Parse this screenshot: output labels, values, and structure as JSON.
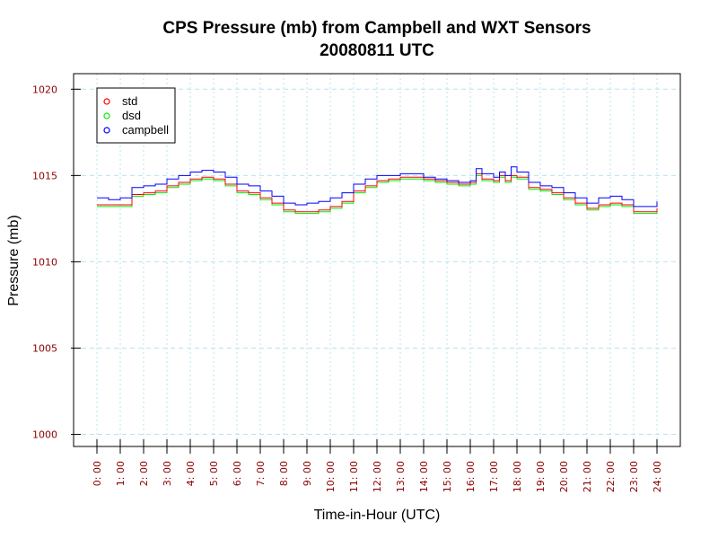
{
  "chart_data": {
    "type": "line",
    "title": "CPS Pressure (mb) from Campbell and WXT Sensors",
    "subtitle": "20080811  UTC",
    "xlabel": "Time-in-Hour (UTC)",
    "ylabel": "Pressure (mb)",
    "xlim": [
      -1,
      25
    ],
    "ylim": [
      999.3,
      1020.9
    ],
    "x_ticks": [
      0,
      1,
      2,
      3,
      4,
      5,
      6,
      7,
      8,
      9,
      10,
      11,
      12,
      13,
      14,
      15,
      16,
      17,
      18,
      19,
      20,
      21,
      22,
      23,
      24
    ],
    "x_tick_labels": [
      "0: 00",
      "1: 00",
      "2: 00",
      "3: 00",
      "4: 00",
      "5: 00",
      "6: 00",
      "7: 00",
      "8: 00",
      "9: 00",
      "10: 00",
      "11: 00",
      "12: 00",
      "13: 00",
      "14: 00",
      "15: 00",
      "16: 00",
      "17: 00",
      "18: 00",
      "19: 00",
      "20: 00",
      "21: 00",
      "22: 00",
      "23: 00",
      "24: 00"
    ],
    "y_ticks": [
      1000,
      1005,
      1010,
      1015,
      1020
    ],
    "y_tick_labels": [
      "1000",
      "1005",
      "1010",
      "1015",
      "1020"
    ],
    "grid": true,
    "legend_position": "top-left",
    "x": [
      0,
      0.5,
      1,
      1.5,
      2,
      2.5,
      3,
      3.5,
      4,
      4.5,
      5,
      5.5,
      6,
      6.5,
      7,
      7.5,
      8,
      8.5,
      9,
      9.5,
      10,
      10.5,
      11,
      11.5,
      12,
      12.5,
      13,
      13.5,
      14,
      14.5,
      15,
      15.5,
      16,
      16.25,
      16.5,
      17,
      17.25,
      17.5,
      17.75,
      18,
      18.5,
      19,
      19.5,
      20,
      20.5,
      21,
      21.5,
      22,
      22.5,
      23,
      23.5,
      24
    ],
    "series": [
      {
        "name": "std",
        "color": "#ff0000",
        "values": [
          1013.3,
          1013.3,
          1013.3,
          1013.9,
          1014.0,
          1014.1,
          1014.4,
          1014.6,
          1014.8,
          1014.9,
          1014.8,
          1014.5,
          1014.1,
          1014.0,
          1013.7,
          1013.4,
          1013.0,
          1012.9,
          1012.9,
          1013.0,
          1013.2,
          1013.5,
          1014.1,
          1014.4,
          1014.7,
          1014.8,
          1014.9,
          1014.9,
          1014.8,
          1014.7,
          1014.6,
          1014.5,
          1014.6,
          1015.1,
          1014.8,
          1014.7,
          1015.0,
          1014.7,
          1015.0,
          1014.9,
          1014.3,
          1014.2,
          1014.0,
          1013.7,
          1013.4,
          1013.1,
          1013.3,
          1013.4,
          1013.3,
          1012.9,
          1012.9,
          1013.1
        ]
      },
      {
        "name": "dsd",
        "color": "#00ee00",
        "values": [
          1013.2,
          1013.2,
          1013.2,
          1013.8,
          1013.9,
          1014.0,
          1014.3,
          1014.5,
          1014.7,
          1014.8,
          1014.7,
          1014.4,
          1014.0,
          1013.9,
          1013.6,
          1013.3,
          1012.9,
          1012.8,
          1012.8,
          1012.9,
          1013.1,
          1013.4,
          1014.0,
          1014.3,
          1014.6,
          1014.7,
          1014.8,
          1014.8,
          1014.7,
          1014.6,
          1014.5,
          1014.4,
          1014.5,
          1015.0,
          1014.7,
          1014.6,
          1014.9,
          1014.6,
          1014.9,
          1014.8,
          1014.2,
          1014.1,
          1013.9,
          1013.6,
          1013.3,
          1013.0,
          1013.2,
          1013.3,
          1013.2,
          1012.8,
          1012.8,
          1013.0
        ]
      },
      {
        "name": "campbell",
        "color": "#0000ff",
        "values": [
          1013.7,
          1013.6,
          1013.7,
          1014.3,
          1014.4,
          1014.5,
          1014.8,
          1015.0,
          1015.2,
          1015.3,
          1015.2,
          1014.9,
          1014.5,
          1014.4,
          1014.1,
          1013.8,
          1013.4,
          1013.3,
          1013.4,
          1013.5,
          1013.7,
          1014.0,
          1014.5,
          1014.8,
          1015.0,
          1015.0,
          1015.1,
          1015.1,
          1014.9,
          1014.8,
          1014.7,
          1014.6,
          1014.7,
          1015.4,
          1015.1,
          1014.9,
          1015.2,
          1015.0,
          1015.5,
          1015.2,
          1014.6,
          1014.4,
          1014.3,
          1014.0,
          1013.7,
          1013.4,
          1013.7,
          1013.8,
          1013.6,
          1013.2,
          1013.2,
          1013.5
        ]
      }
    ]
  },
  "colors": {
    "grid": "#b4e6ef",
    "tick_label": "#8b0000",
    "axis": "#000000"
  }
}
